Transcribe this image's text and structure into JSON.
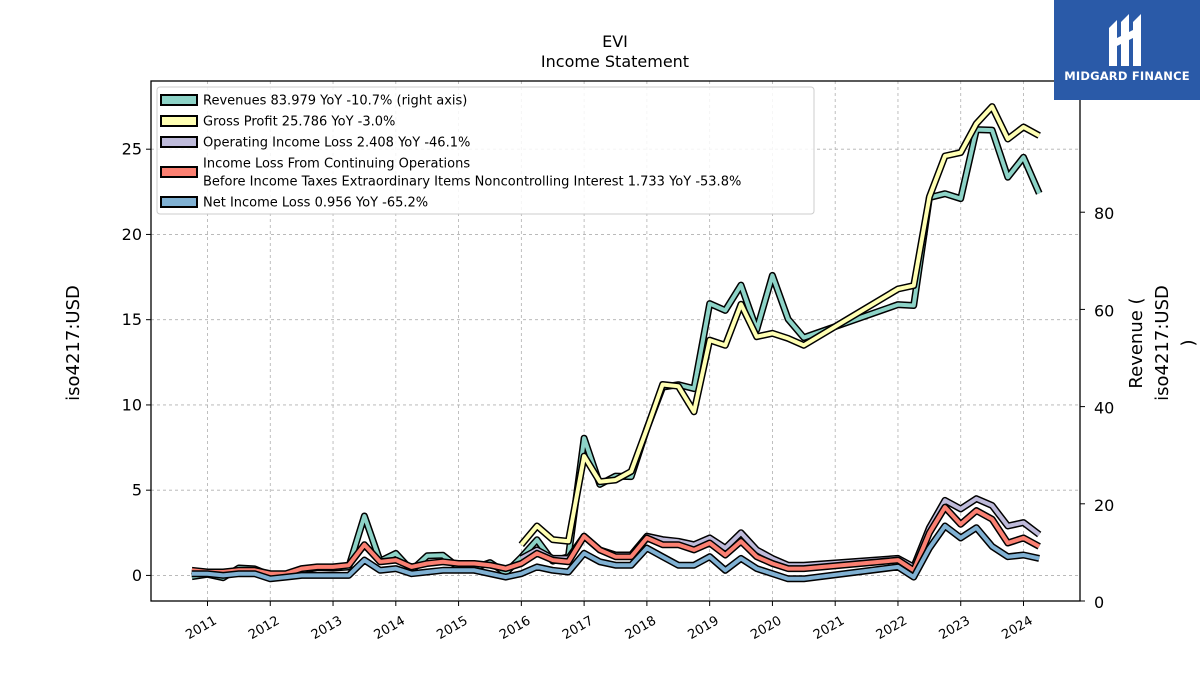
{
  "chart_data": {
    "type": "line",
    "title": "EVI",
    "subtitle": "Income Statement",
    "ylabel_left": "iso4217:USD",
    "ylabel_right": "Revenue (\niso4217:USD\n)",
    "ylim_left": [
      -1.5,
      29
    ],
    "ylim_right": [
      0,
      107
    ],
    "yticks_left": [
      0,
      5,
      10,
      15,
      20,
      25
    ],
    "yticks_right": [
      0,
      20,
      40,
      60,
      80
    ],
    "xlim": [
      2010.1,
      2024.9
    ],
    "xticks": [
      "2011",
      "2012",
      "2013",
      "2014",
      "2015",
      "2016",
      "2017",
      "2018",
      "2019",
      "2020",
      "2021",
      "2022",
      "2023",
      "2024"
    ],
    "grid": true,
    "legend_location": "upper left",
    "series": [
      {
        "name": "Revenues  83.979 YoY -10.7% (right axis)",
        "legend_lines": [
          "Revenues  83.979 YoY -10.7% (right axis)"
        ],
        "axis": "right",
        "color": "#8dd3c7",
        "x": [
          2010.75,
          2011.0,
          2011.25,
          2011.5,
          2011.75,
          2012.0,
          2012.25,
          2012.5,
          2012.75,
          2013.0,
          2013.25,
          2013.5,
          2013.75,
          2014.0,
          2014.25,
          2014.5,
          2014.75,
          2015.0,
          2015.25,
          2015.5,
          2015.75,
          2016.0,
          2016.25,
          2016.5,
          2016.75,
          2017.0,
          2017.25,
          2017.5,
          2017.75,
          2018.0,
          2018.25,
          2018.5,
          2018.75,
          2019.0,
          2019.25,
          2019.5,
          2019.75,
          2020.0,
          2020.25,
          2020.5,
          2022.0,
          2022.25,
          2022.5,
          2022.75,
          2023.0,
          2023.25,
          2023.5,
          2023.75,
          2024.0,
          2024.25
        ],
        "values": [
          5.0,
          5.5,
          4.8,
          6.8,
          6.6,
          5.3,
          5.2,
          6.3,
          6.9,
          6.8,
          7.0,
          17.5,
          8.2,
          9.8,
          6.3,
          9.3,
          9.4,
          6.9,
          6.8,
          7.9,
          5.8,
          9.0,
          12.6,
          8.2,
          9.1,
          33.5,
          24.0,
          25.7,
          25.6,
          35.5,
          44.0,
          44.5,
          43.7,
          61.2,
          59.8,
          65.0,
          55.8,
          67.0,
          58.0,
          54.2,
          61.0,
          60.8,
          83.0,
          83.8,
          82.8,
          97.0,
          96.9,
          87.2,
          91.3,
          83.9
        ]
      },
      {
        "name": "Gross Profit  25.786 YoY -3.0%",
        "legend_lines": [
          "Gross Profit  25.786 YoY -3.0%"
        ],
        "axis": "left",
        "color": "#ffffb3",
        "x": [
          2016.0,
          2016.25,
          2016.5,
          2016.75,
          2017.0,
          2017.25,
          2017.5,
          2017.75,
          2018.0,
          2018.25,
          2018.5,
          2018.75,
          2019.0,
          2019.25,
          2019.5,
          2019.75,
          2020.0,
          2020.25,
          2020.5,
          2022.0,
          2022.25,
          2022.5,
          2022.75,
          2023.0,
          2023.25,
          2023.5,
          2023.75,
          2024.0,
          2024.25
        ],
        "values": [
          1.8,
          2.9,
          2.1,
          2.0,
          7.0,
          5.5,
          5.6,
          6.1,
          8.6,
          11.2,
          11.1,
          9.6,
          13.8,
          13.5,
          15.9,
          14.0,
          14.2,
          13.9,
          13.5,
          16.8,
          17.0,
          22.2,
          24.6,
          24.8,
          26.5,
          27.5,
          25.6,
          26.3,
          25.8
        ]
      },
      {
        "name": "Operating Income Loss  2.408 YoY -46.1%",
        "legend_lines": [
          "Operating Income Loss  2.408 YoY -46.1%"
        ],
        "axis": "left",
        "color": "#bebada",
        "x": [
          2016.0,
          2016.25,
          2016.5,
          2016.75,
          2017.0,
          2017.25,
          2017.5,
          2017.75,
          2018.0,
          2018.25,
          2018.5,
          2018.75,
          2019.0,
          2019.25,
          2019.5,
          2019.75,
          2020.0,
          2020.25,
          2020.5,
          2022.0,
          2022.25,
          2022.5,
          2022.75,
          2023.0,
          2023.25,
          2023.5,
          2023.75,
          2024.0,
          2024.25
        ],
        "values": [
          1.0,
          1.5,
          1.0,
          1.0,
          2.3,
          1.5,
          1.2,
          1.2,
          2.3,
          2.1,
          2.0,
          1.8,
          2.2,
          1.6,
          2.5,
          1.5,
          1.0,
          0.6,
          0.6,
          1.0,
          0.5,
          2.8,
          4.4,
          3.9,
          4.5,
          4.1,
          2.9,
          3.1,
          2.4
        ]
      },
      {
        "name": "Income Loss From Continuing Operations Before Income Taxes Extraordinary Items Noncontrolling Interest  1.733 YoY -53.8%",
        "legend_lines": [
          "Income Loss From Continuing Operations",
          "Before Income Taxes Extraordinary Items Noncontrolling Interest  1.733 YoY -53.8%"
        ],
        "axis": "left",
        "color": "#fb8072",
        "x": [
          2010.75,
          2011.0,
          2011.25,
          2011.5,
          2011.75,
          2012.0,
          2012.25,
          2012.5,
          2012.75,
          2013.0,
          2013.25,
          2013.5,
          2013.75,
          2014.0,
          2014.25,
          2014.5,
          2014.75,
          2015.0,
          2015.25,
          2015.5,
          2015.75,
          2016.0,
          2016.25,
          2016.5,
          2016.75,
          2017.0,
          2017.25,
          2017.5,
          2017.75,
          2018.0,
          2018.25,
          2018.5,
          2018.75,
          2019.0,
          2019.25,
          2019.5,
          2019.75,
          2020.0,
          2020.25,
          2020.5,
          2022.0,
          2022.25,
          2022.5,
          2022.75,
          2023.0,
          2023.25,
          2023.5,
          2023.75,
          2024.0,
          2024.25
        ],
        "values": [
          0.3,
          0.2,
          0.2,
          0.3,
          0.3,
          0.1,
          0.1,
          0.4,
          0.5,
          0.5,
          0.6,
          1.8,
          0.8,
          0.9,
          0.5,
          0.7,
          0.8,
          0.7,
          0.7,
          0.6,
          0.4,
          0.7,
          1.3,
          0.9,
          0.8,
          2.3,
          1.5,
          1.1,
          1.1,
          2.2,
          1.8,
          1.8,
          1.5,
          1.9,
          1.2,
          2.0,
          1.1,
          0.7,
          0.4,
          0.4,
          0.9,
          0.3,
          2.5,
          4.0,
          3.0,
          3.8,
          3.3,
          1.9,
          2.2,
          1.7
        ]
      },
      {
        "name": "Net Income Loss  0.956 YoY -65.2%",
        "legend_lines": [
          "Net Income Loss  0.956 YoY -65.2%"
        ],
        "axis": "left",
        "color": "#80b1d3",
        "x": [
          2010.75,
          2011.0,
          2011.25,
          2011.5,
          2011.75,
          2012.0,
          2012.25,
          2012.5,
          2012.75,
          2013.0,
          2013.25,
          2013.5,
          2013.75,
          2014.0,
          2014.25,
          2014.5,
          2014.75,
          2015.0,
          2015.25,
          2015.5,
          2015.75,
          2016.0,
          2016.25,
          2016.5,
          2016.75,
          2017.0,
          2017.25,
          2017.5,
          2017.75,
          2018.0,
          2018.25,
          2018.5,
          2018.75,
          2019.0,
          2019.25,
          2019.5,
          2019.75,
          2020.0,
          2020.25,
          2020.5,
          2022.0,
          2022.25,
          2022.5,
          2022.75,
          2023.0,
          2023.25,
          2023.5,
          2023.75,
          2024.0,
          2024.25
        ],
        "values": [
          0.1,
          0.1,
          0.0,
          0.1,
          0.1,
          -0.2,
          -0.1,
          0.0,
          0.0,
          0.0,
          0.0,
          0.9,
          0.3,
          0.4,
          0.1,
          0.2,
          0.3,
          0.3,
          0.3,
          0.1,
          -0.1,
          0.1,
          0.5,
          0.3,
          0.2,
          1.3,
          0.8,
          0.6,
          0.6,
          1.6,
          1.1,
          0.6,
          0.6,
          1.1,
          0.3,
          1.0,
          0.4,
          0.1,
          -0.2,
          -0.2,
          0.5,
          -0.1,
          1.6,
          2.9,
          2.2,
          2.8,
          1.7,
          1.1,
          1.2,
          1.0
        ]
      }
    ]
  },
  "logo": {
    "text": "MIDGARD FINANCE",
    "mark_icon": "midgard-logo-mark",
    "background_color": "#2a5aa8"
  }
}
